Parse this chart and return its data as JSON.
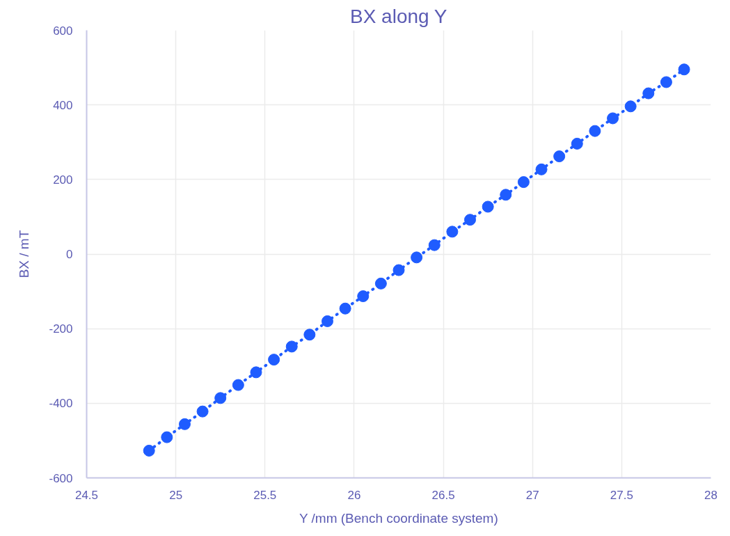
{
  "chart_data": {
    "type": "line",
    "title": "BX along Y",
    "xlabel": "Y /mm (Bench coordinate system)",
    "ylabel": "BX / mT",
    "x": [
      24.85,
      24.95,
      25.05,
      25.15,
      25.25,
      25.35,
      25.45,
      25.55,
      25.65,
      25.75,
      25.85,
      25.95,
      26.05,
      26.15,
      26.25,
      26.35,
      26.45,
      26.55,
      26.65,
      26.75,
      26.85,
      26.95,
      27.05,
      27.15,
      27.25,
      27.35,
      27.45,
      27.55,
      27.65,
      27.75,
      27.85
    ],
    "series": [
      {
        "color": "#1f5cff",
        "values": [
          -527,
          -491,
          -456,
          -422,
          -386,
          -351,
          -317,
          -283,
          -248,
          -216,
          -180,
          -146,
          -113,
          -79,
          -43,
          -9,
          24,
          60,
          92,
          127,
          159,
          193,
          227,
          262,
          296,
          330,
          364,
          396,
          431,
          461,
          495
        ]
      }
    ],
    "xlim": [
      24.5,
      28
    ],
    "xticks": [
      24.5,
      25,
      25.5,
      26,
      26.5,
      27,
      27.5,
      28
    ],
    "ylim": [
      -600,
      600
    ],
    "yticks": [
      -600,
      -400,
      -200,
      0,
      200,
      400,
      600
    ],
    "grid": true,
    "marker": "circle",
    "line_style": "dotted"
  }
}
